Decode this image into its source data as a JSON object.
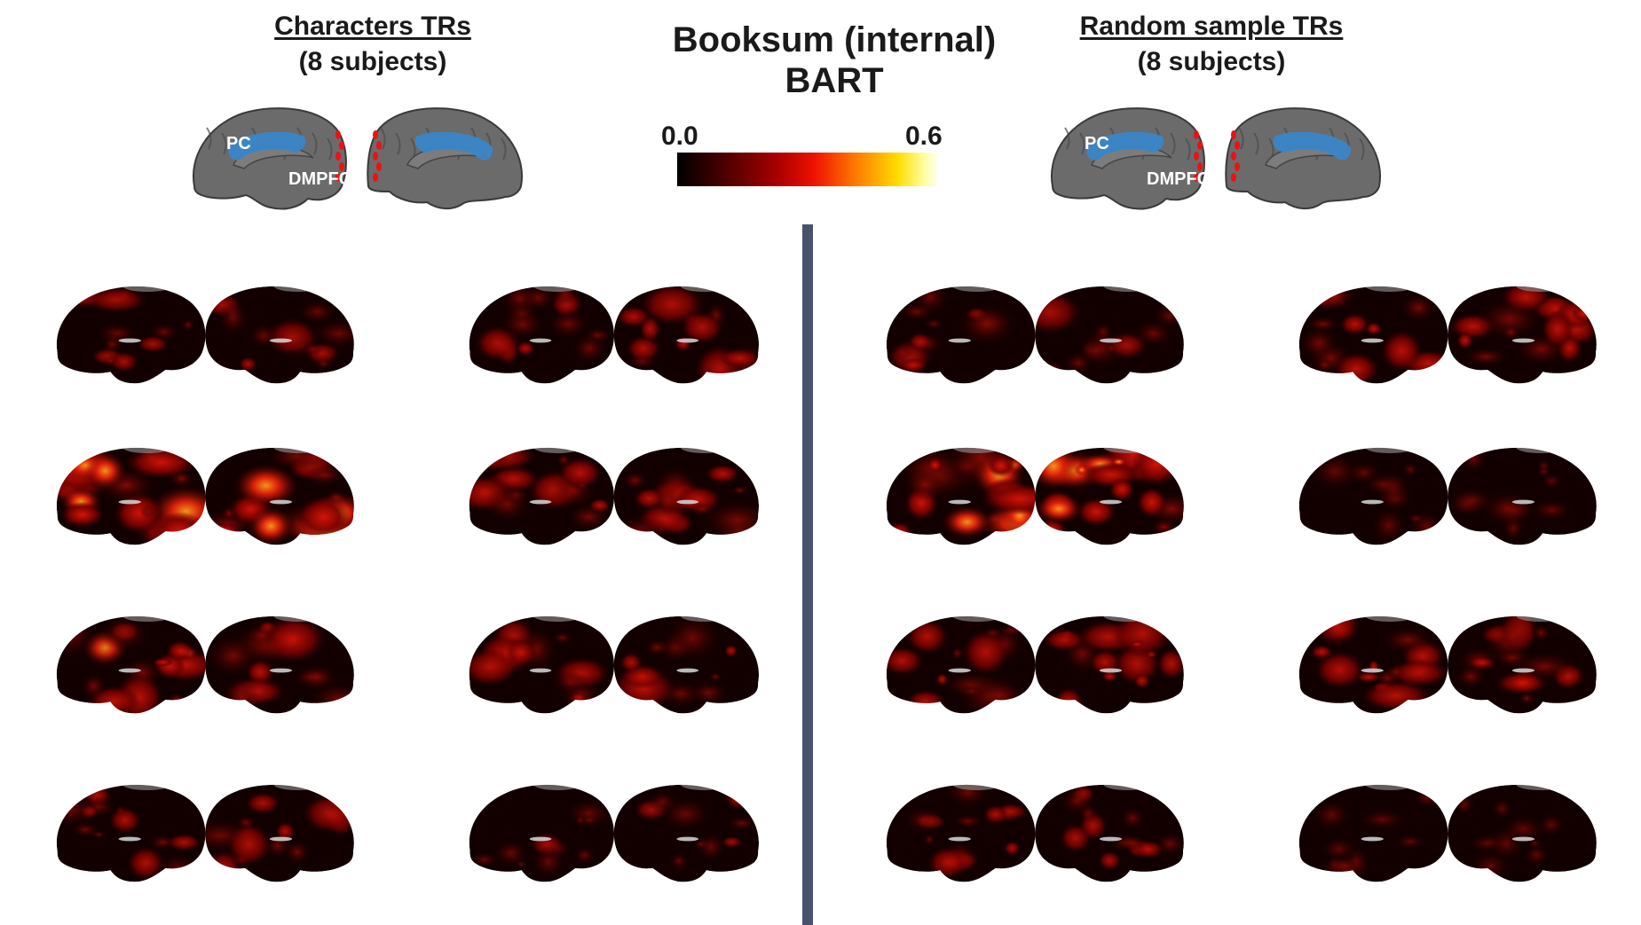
{
  "main_title": {
    "line1": "Booksum (internal)",
    "line2": "BART"
  },
  "left_panel": {
    "title": "Characters TRs",
    "subtitle": "(8 subjects)"
  },
  "right_panel": {
    "title": "Random sample TRs",
    "subtitle": "(8 subjects)"
  },
  "roi_labels": {
    "pc": "PC",
    "dmpfc": "DMPFC"
  },
  "colorbar": {
    "min_label": "0.0",
    "max_label": "0.6",
    "min": 0.0,
    "max": 0.6,
    "colormap": "hot"
  },
  "colors": {
    "divider": "#46536d",
    "roi": "#3a86c8",
    "roi_edge": "#ee1111",
    "cortex": "#6b6b6b"
  },
  "subjects": {
    "left_panel_count": 8,
    "right_panel_count": 8
  }
}
